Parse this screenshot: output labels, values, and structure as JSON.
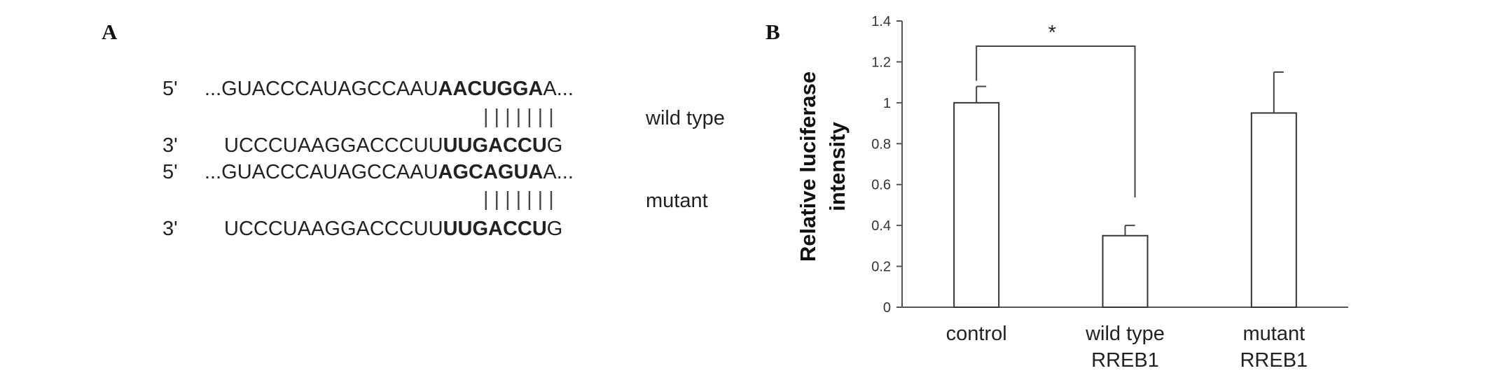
{
  "panel_a": {
    "letter": "A",
    "rows": [
      {
        "prime": "5'",
        "pre": "...GUACCCAUAGCCAAU",
        "bold": "AACUGGA",
        "post": "A..."
      },
      {
        "prime": "3'",
        "pre": "UCCCUAAGGACCCUU",
        "bold": "UUGACCU",
        "post": "G"
      },
      {
        "prime": "5'",
        "pre": "...GUACCCAUAGCCAAU",
        "bold": "AGCAGUA",
        "post": "A..."
      },
      {
        "prime": "3'",
        "pre": "UCCCUAAGGACCCUU",
        "bold": "UUGACCU",
        "post": "G"
      }
    ],
    "pair_marks": "|||||||",
    "labels": [
      "wild type",
      "mutant"
    ]
  },
  "panel_b": {
    "letter": "B",
    "significance": "*"
  },
  "chart_data": {
    "type": "bar",
    "categories": [
      [
        "control"
      ],
      [
        "wild type",
        "RREB1"
      ],
      [
        "mutant",
        "RREB1"
      ]
    ],
    "values": [
      1.0,
      0.35,
      0.95
    ],
    "errors": [
      0.08,
      0.05,
      0.2
    ],
    "ylabel": "Relative luciferase intensity",
    "ylabel_lines": [
      "Relative luciferase",
      "intensity"
    ],
    "ylim": [
      0,
      1.4
    ],
    "yticks": [
      "0",
      "0.2",
      "0.4",
      "0.6",
      "0.8",
      "1",
      "1.2",
      "1.4"
    ],
    "grid": false,
    "bar_fill": "#ffffff",
    "bar_stroke": "#333333",
    "significance": {
      "between": [
        0,
        1
      ],
      "label": "*"
    }
  }
}
